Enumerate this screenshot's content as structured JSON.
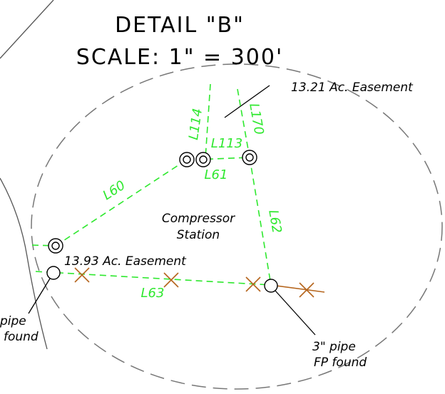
{
  "header": {
    "title": "DETAIL \"B\"",
    "scale": "SCALE: 1\" = 300'"
  },
  "lines": {
    "l114": "L114",
    "l170": "L170",
    "l113": "L113",
    "l61": "L61",
    "l60": "L60",
    "l62": "L62",
    "l63": "L63"
  },
  "areas": {
    "easement_north": "13.21 Ac. Easement",
    "easement_west": "13.93 Ac. Easement",
    "station_1": "Compressor",
    "station_2": "Station"
  },
  "notes": {
    "pipe_left_1": "pipe",
    "pipe_left_2": "found",
    "pipe_right_1": "3\" pipe",
    "pipe_right_2": "FP found"
  }
}
